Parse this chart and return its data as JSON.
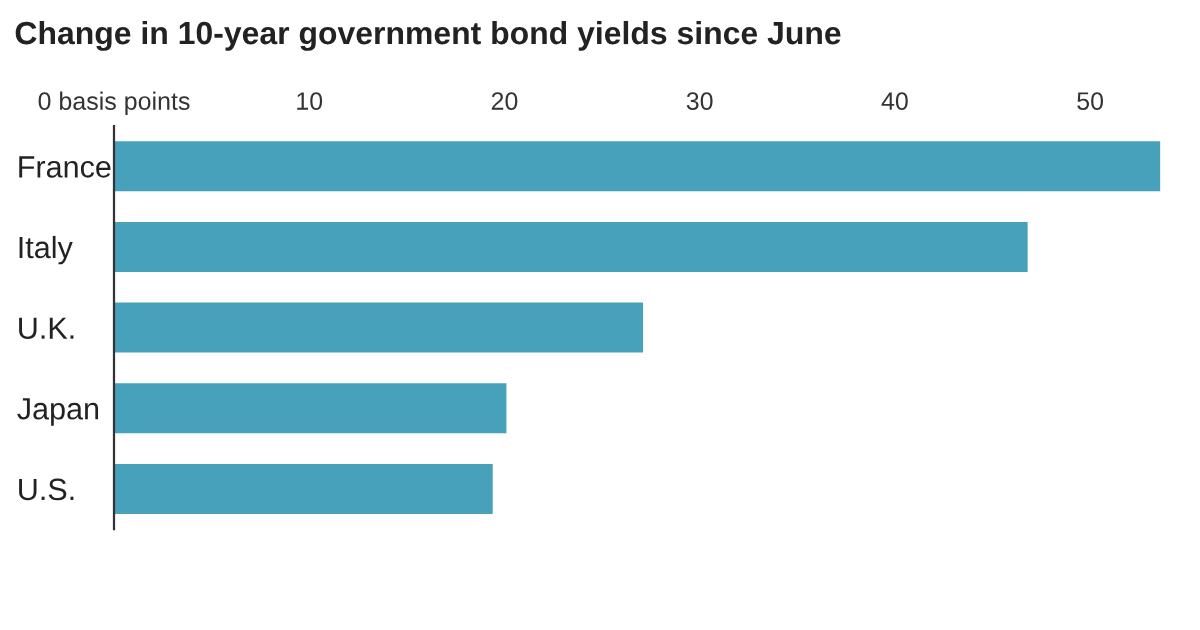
{
  "chart_data": {
    "type": "bar",
    "orientation": "horizontal",
    "title": "Change in 10-year government bond yields since June",
    "categories": [
      "France",
      "Italy",
      "U.K.",
      "Japan",
      "U.S."
    ],
    "values": [
      53.6,
      46.8,
      27.1,
      20.1,
      19.4
    ],
    "color": "#48a1bb",
    "xlim": [
      0,
      53.6
    ],
    "xticks": [
      {
        "value": 0,
        "label": "0 basis points"
      },
      10,
      20,
      30,
      40,
      50
    ],
    "grid": false
  }
}
